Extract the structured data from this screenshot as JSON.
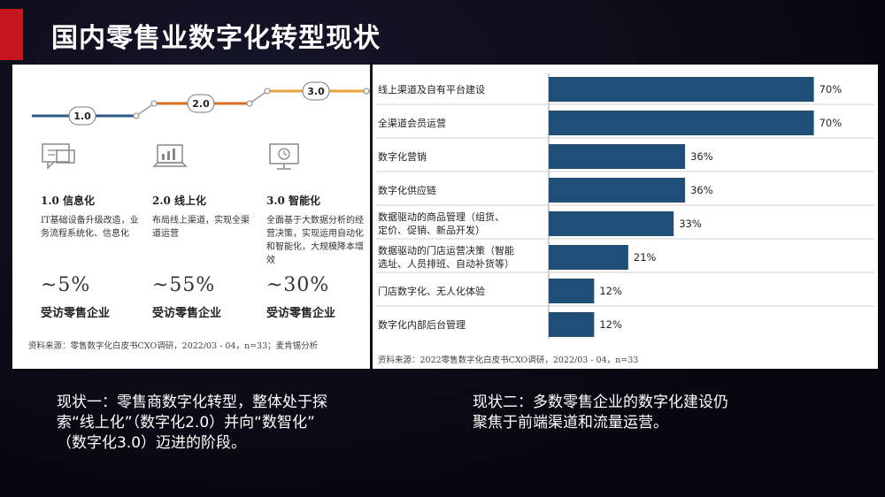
{
  "slide": {
    "title": "国内零售业数字化转型现状"
  },
  "left_panel": {
    "timeline": [
      "1.0",
      "2.0",
      "3.0"
    ],
    "timeline_colors": [
      "#2e5a8a",
      "#d9701f",
      "#e9a33a"
    ],
    "stages": [
      {
        "icon": "chat-icon",
        "name": "1.0 信息化",
        "desc": "IT基础设备升级改造，业务流程系统化、信息化",
        "pct": "~5%",
        "sub": "受访零售企业"
      },
      {
        "icon": "laptop-chart-icon",
        "name": "2.0 线上化",
        "desc": "布局线上渠道，实现全渠道运营",
        "pct": "~55%",
        "sub": "受访零售企业"
      },
      {
        "icon": "monitor-clock-icon",
        "name": "3.0 智能化",
        "desc": "全面基于大数据分析的经营决策，实现运用自动化和智能化，大规模降本增效",
        "pct": "~30%",
        "sub": "受访零售企业"
      }
    ],
    "source": "资料来源：零售数字化白皮书CXO调研，2022/03 - 04，n=33；麦肯锡分析"
  },
  "right_panel": {
    "source": "资料来源：2022零售数字化白皮书CXO调研，2022/03 - 04，n=33"
  },
  "chart_data": {
    "type": "bar",
    "orientation": "horizontal",
    "bar_color": "#1f4e79",
    "categories": [
      "线上渠道及自有平台建设",
      "全渠道会员运营",
      "数字化营销",
      "数字化供应链",
      "数据驱动的商品管理（组货、定价、促销、新品开发）",
      "数据驱动的门店运营决策（智能选址、人员排班、自动补货等）",
      "门店数字化、无人化体验",
      "数字化内部后台管理"
    ],
    "category_lines": [
      [
        "线上渠道及自有平台建设"
      ],
      [
        "全渠道会员运营"
      ],
      [
        "数字化营销"
      ],
      [
        "数字化供应链"
      ],
      [
        "数据驱动的商品管理（组货、",
        "定价、促销、新品开发）"
      ],
      [
        "数据驱动的门店运营决策（智能",
        "选址、人员排班、自动补货等）"
      ],
      [
        "门店数字化、无人化体验"
      ],
      [
        "数字化内部后台管理"
      ]
    ],
    "values": [
      70,
      70,
      36,
      36,
      33,
      21,
      12,
      12
    ],
    "value_labels": [
      "70%",
      "70%",
      "36%",
      "36%",
      "33%",
      "21%",
      "12%",
      "12%"
    ],
    "xlim": [
      0,
      100
    ]
  },
  "captions": {
    "left": [
      "现状一：零售商数字化转型，整体处于探",
      "索“线上化”（数字化2.0）并向“数智化”",
      "（数字化3.0）迈进的阶段。"
    ],
    "right": [
      "现状二：多数零售企业的数字化建设仍",
      "聚焦于前端渠道和流量运营。"
    ]
  }
}
